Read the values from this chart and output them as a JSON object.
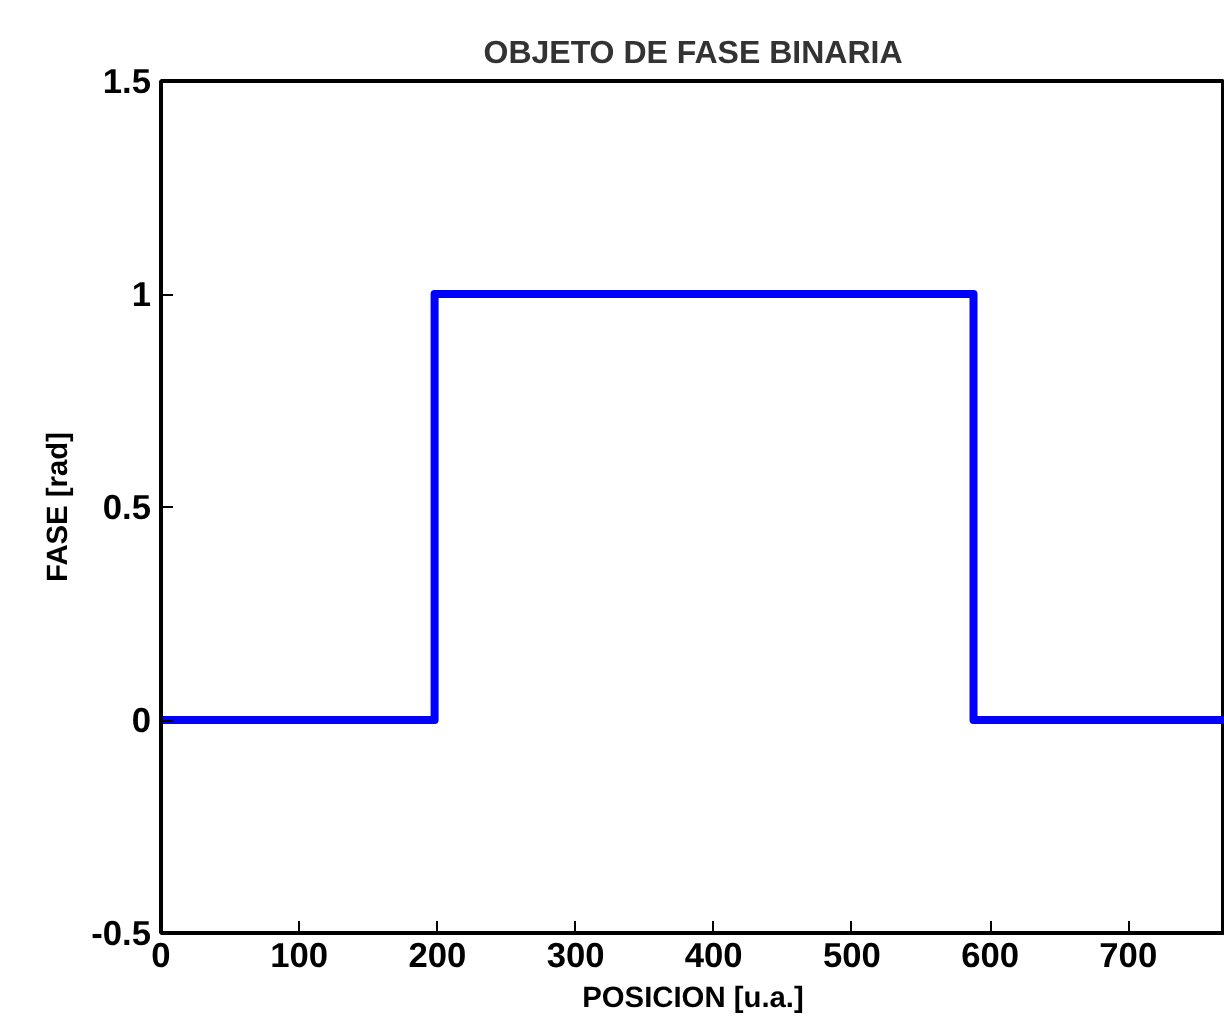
{
  "chart_data": {
    "type": "line",
    "title": "OBJETO DE FASE BINARIA",
    "xlabel": "POSICION [u.a.]",
    "ylabel": "FASE [rad]",
    "x": [
      0,
      198,
      198,
      588,
      588,
      770
    ],
    "series": [
      {
        "color": "#0000ff",
        "values": [
          0,
          0,
          1,
          1,
          0,
          0
        ]
      }
    ],
    "xlim": [
      0,
      770
    ],
    "xticks": [
      0,
      100,
      200,
      300,
      400,
      500,
      600,
      700
    ],
    "ylim": [
      -0.5,
      1.5
    ],
    "yticks": [
      -0.5,
      0,
      0.5,
      1,
      1.5
    ],
    "grid": false,
    "marker": "none",
    "line_style": "solid"
  }
}
